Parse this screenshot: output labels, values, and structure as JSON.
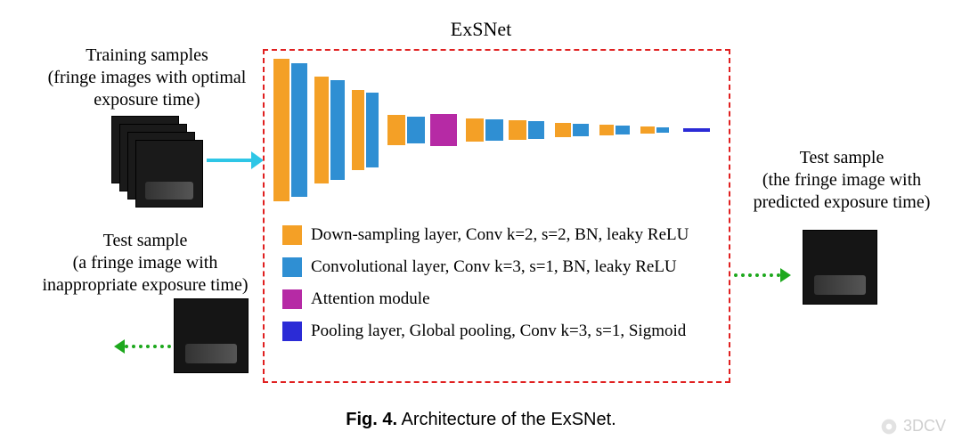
{
  "title": "ExSNet",
  "training_label": "Training samples\n(fringe images with optimal exposure time)",
  "test_left_label": "Test sample\n(a fringe image with inappropriate exposure time)",
  "test_right_label": "Test sample\n(the fringe image with predicted exposure time)",
  "colors": {
    "downsample": "#f4a026",
    "conv": "#2f8fd3",
    "attention": "#b62aa5",
    "pool": "#2b2bd6",
    "box_border": "#e02020",
    "arrow_train": "#2ec6e6",
    "arrow_test": "#1da81d",
    "background": "#ffffff"
  },
  "legend": [
    {
      "color_key": "downsample",
      "label": "Down-sampling layer, Conv k=2, s=2, BN, leaky ReLU"
    },
    {
      "color_key": "conv",
      "label": "Convolutional layer, Conv k=3, s=1, BN, leaky ReLU"
    },
    {
      "color_key": "attention",
      "label": "Attention module"
    },
    {
      "color_key": "pool",
      "label": "Pooling layer, Global pooling, Conv k=3, s=1, Sigmoid"
    }
  ],
  "network_bars": [
    {
      "type": "downsample",
      "w": 18,
      "h": 160
    },
    {
      "type": "conv",
      "w": 18,
      "h": 150
    },
    {
      "type": "gap",
      "w": 4
    },
    {
      "type": "downsample",
      "w": 16,
      "h": 120
    },
    {
      "type": "conv",
      "w": 16,
      "h": 112
    },
    {
      "type": "gap",
      "w": 4
    },
    {
      "type": "downsample",
      "w": 14,
      "h": 90
    },
    {
      "type": "conv",
      "w": 14,
      "h": 84
    },
    {
      "type": "gap",
      "w": 6
    },
    {
      "type": "downsample",
      "w": 20,
      "h": 34
    },
    {
      "type": "conv",
      "w": 20,
      "h": 30
    },
    {
      "type": "gap",
      "w": 2
    },
    {
      "type": "attention",
      "w": 30,
      "h": 36
    },
    {
      "type": "gap",
      "w": 6
    },
    {
      "type": "downsample",
      "w": 20,
      "h": 26
    },
    {
      "type": "conv",
      "w": 20,
      "h": 24
    },
    {
      "type": "gap",
      "w": 2
    },
    {
      "type": "downsample",
      "w": 20,
      "h": 22
    },
    {
      "type": "conv",
      "w": 18,
      "h": 20
    },
    {
      "type": "gap",
      "w": 8
    },
    {
      "type": "downsample",
      "w": 18,
      "h": 16
    },
    {
      "type": "conv",
      "w": 18,
      "h": 14
    },
    {
      "type": "gap",
      "w": 8
    },
    {
      "type": "downsample",
      "w": 16,
      "h": 12
    },
    {
      "type": "conv",
      "w": 16,
      "h": 10
    },
    {
      "type": "gap",
      "w": 8
    },
    {
      "type": "downsample",
      "w": 16,
      "h": 8
    },
    {
      "type": "conv",
      "w": 14,
      "h": 6
    },
    {
      "type": "gap",
      "w": 12
    },
    {
      "type": "pool",
      "w": 30,
      "h": 4
    }
  ],
  "caption_bold": "Fig. 4.",
  "caption_rest": " Architecture of the ExSNet.",
  "watermark": "3DCV"
}
